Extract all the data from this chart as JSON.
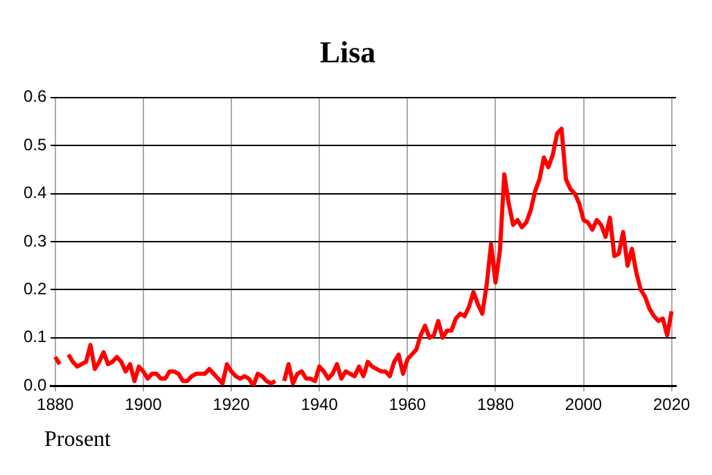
{
  "chart_data": {
    "type": "line",
    "title": "Lisa",
    "annotations": [
      "Prosent"
    ],
    "x": [
      1880,
      1881,
      1882,
      1883,
      1884,
      1885,
      1886,
      1887,
      1888,
      1889,
      1890,
      1891,
      1892,
      1893,
      1894,
      1895,
      1896,
      1897,
      1898,
      1899,
      1900,
      1901,
      1902,
      1903,
      1904,
      1905,
      1906,
      1907,
      1908,
      1909,
      1910,
      1911,
      1912,
      1913,
      1914,
      1915,
      1916,
      1917,
      1918,
      1919,
      1920,
      1921,
      1922,
      1923,
      1924,
      1925,
      1926,
      1927,
      1928,
      1929,
      1930,
      1931,
      1932,
      1933,
      1934,
      1935,
      1936,
      1937,
      1938,
      1939,
      1940,
      1941,
      1942,
      1943,
      1944,
      1945,
      1946,
      1947,
      1948,
      1949,
      1950,
      1951,
      1952,
      1953,
      1954,
      1955,
      1956,
      1957,
      1958,
      1959,
      1960,
      1961,
      1962,
      1963,
      1964,
      1965,
      1966,
      1967,
      1968,
      1969,
      1970,
      1971,
      1972,
      1973,
      1974,
      1975,
      1976,
      1977,
      1978,
      1979,
      1980,
      1981,
      1982,
      1983,
      1984,
      1985,
      1986,
      1987,
      1988,
      1989,
      1990,
      1991,
      1992,
      1993,
      1994,
      1995,
      1996,
      1997,
      1998,
      1999,
      2000,
      2001,
      2002,
      2003,
      2004,
      2005,
      2006,
      2007,
      2008,
      2009,
      2010,
      2011,
      2012,
      2013,
      2014,
      2015,
      2016,
      2017,
      2018,
      2019,
      2020
    ],
    "series": [
      {
        "color": "#ff0000",
        "values": [
          0.06,
          0.045,
          null,
          0.065,
          0.05,
          0.04,
          0.045,
          0.05,
          0.085,
          0.035,
          0.05,
          0.07,
          0.045,
          0.05,
          0.06,
          0.05,
          0.03,
          0.045,
          0.01,
          0.04,
          0.03,
          0.015,
          0.025,
          0.025,
          0.015,
          0.015,
          0.03,
          0.03,
          0.025,
          0.01,
          0.01,
          0.02,
          0.025,
          0.025,
          0.025,
          0.035,
          0.025,
          0.015,
          0.005,
          0.045,
          0.03,
          0.02,
          0.015,
          0.02,
          0.015,
          0.0,
          0.025,
          0.02,
          0.01,
          0.005,
          0.01,
          null,
          0.01,
          0.045,
          0.005,
          0.025,
          0.03,
          0.015,
          0.015,
          0.01,
          0.04,
          0.03,
          0.015,
          0.025,
          0.045,
          0.015,
          0.03,
          0.025,
          0.02,
          0.04,
          0.02,
          0.05,
          0.04,
          0.035,
          0.03,
          0.03,
          0.02,
          0.05,
          0.065,
          0.025,
          0.055,
          0.065,
          0.075,
          0.105,
          0.125,
          0.1,
          0.105,
          0.135,
          0.1,
          0.115,
          0.115,
          0.14,
          0.15,
          0.145,
          0.165,
          0.195,
          0.17,
          0.15,
          0.21,
          0.295,
          0.215,
          0.28,
          0.44,
          0.38,
          0.335,
          0.345,
          0.33,
          0.34,
          0.365,
          0.405,
          0.43,
          0.475,
          0.455,
          0.48,
          0.525,
          0.535,
          0.43,
          0.41,
          0.4,
          0.38,
          0.345,
          0.34,
          0.325,
          0.345,
          0.335,
          0.31,
          0.35,
          0.27,
          0.275,
          0.32,
          0.25,
          0.285,
          0.235,
          0.2,
          0.185,
          0.16,
          0.145,
          0.135,
          0.14,
          0.105,
          0.155
        ]
      }
    ],
    "xlim": [
      1879,
      2021
    ],
    "xticks": [
      1880,
      1900,
      1920,
      1940,
      1960,
      1980,
      2000,
      2020
    ],
    "ylim": [
      0,
      0.6
    ],
    "yticks": [
      {
        "value": 0,
        "label": "0.0"
      },
      {
        "value": 0.1,
        "label": "0.1"
      },
      {
        "value": 0.2,
        "label": "0.2"
      },
      {
        "value": 0.3,
        "label": "0.3"
      },
      {
        "value": 0.4,
        "label": "0.4"
      },
      {
        "value": 0.5,
        "label": "0.5"
      },
      {
        "value": 0.6,
        "label": "0.6"
      }
    ],
    "grid": true,
    "legend": false,
    "marker": "none",
    "line_style": "solid"
  }
}
